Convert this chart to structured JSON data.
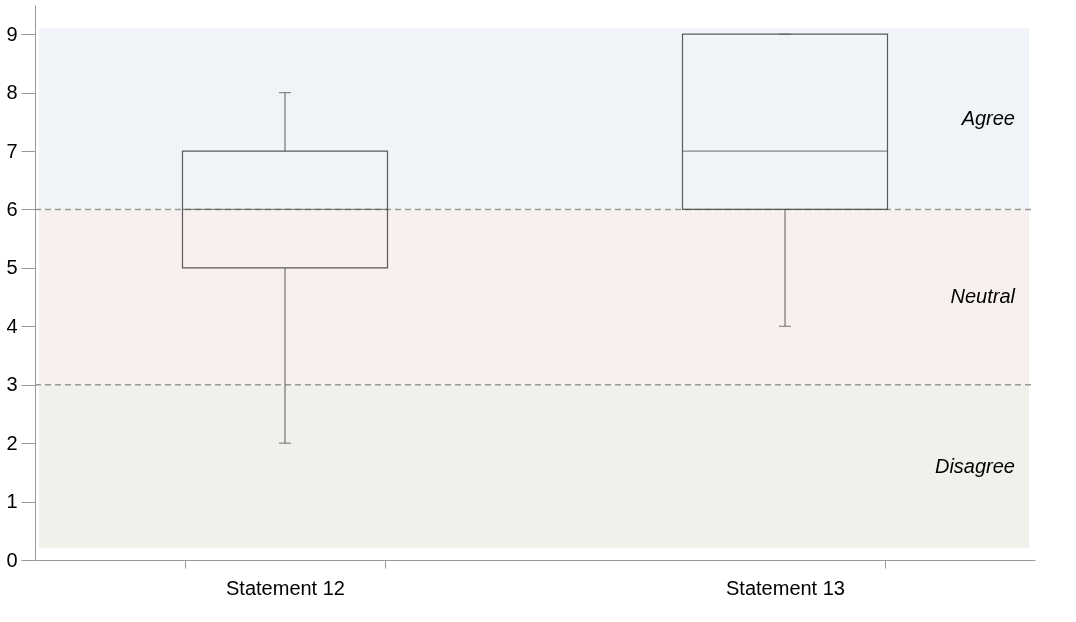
{
  "chart_data": {
    "type": "box",
    "categories": [
      "Statement 12",
      "Statement 13"
    ],
    "series": [
      {
        "color": "#595959",
        "boxes": [
          {
            "low": 2,
            "q1": 5,
            "median": 6,
            "q3": 7,
            "high": 8
          },
          {
            "low": 4,
            "q1": 6,
            "median": 7,
            "q3": 9,
            "high": 9
          }
        ]
      }
    ],
    "ylim": [
      0,
      9.5
    ],
    "yticks": [
      0,
      1,
      2,
      3,
      4,
      5,
      6,
      7,
      8,
      9
    ],
    "bands": [
      {
        "axis": "y",
        "from": 6,
        "to": 9.1,
        "label": "Agree",
        "color": "#f0f4f9"
      },
      {
        "axis": "y",
        "from": 3,
        "to": 6,
        "label": "Neutral",
        "color": "#f8f0ef"
      },
      {
        "axis": "y",
        "from": 0.2,
        "to": 3,
        "label": "Disagree",
        "color": "#eff2ea"
      }
    ],
    "ref_lines": [
      {
        "axis": "y",
        "value": 6,
        "color": "#999999",
        "line_style": "dashed"
      },
      {
        "axis": "y",
        "value": 3,
        "color": "#999999",
        "line_style": "dashed"
      }
    ],
    "grid": false
  }
}
